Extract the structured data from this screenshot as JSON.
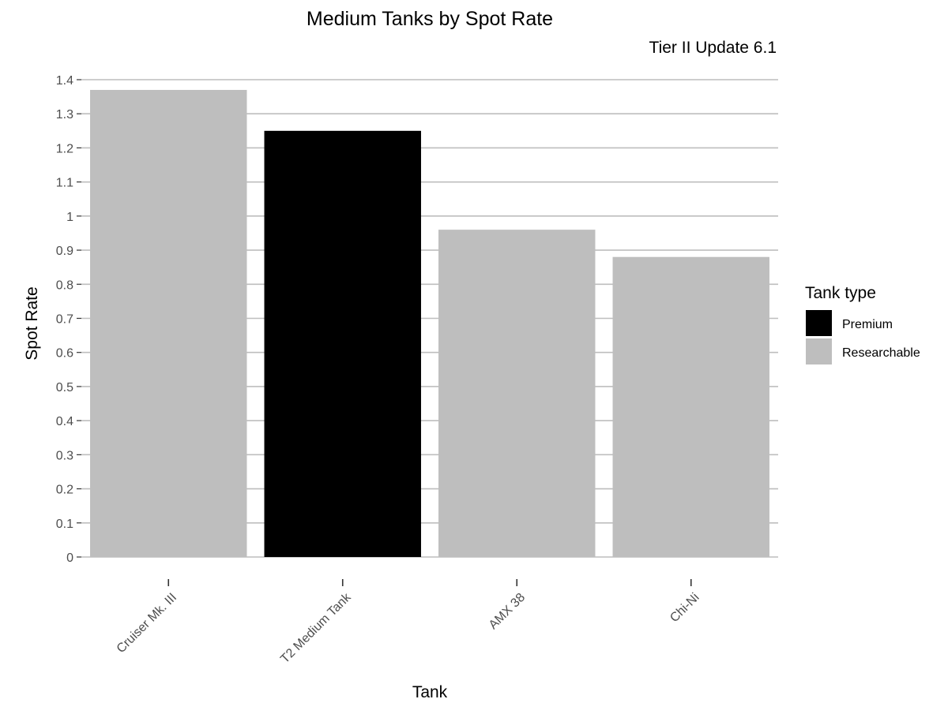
{
  "chart_data": {
    "type": "bar",
    "title": "Medium Tanks by Spot Rate",
    "subtitle": "Tier II Update 6.1",
    "xlabel": "Tank",
    "ylabel": "Spot Rate",
    "categories": [
      "Cruiser Mk. III",
      "T2 Medium Tank",
      "AMX 38",
      "Chi-Ni"
    ],
    "values": [
      1.37,
      1.25,
      0.96,
      0.88
    ],
    "tank_type": [
      "Researchable",
      "Premium",
      "Researchable",
      "Researchable"
    ],
    "ylim": [
      0,
      1.4
    ],
    "yticks": [
      0,
      0.1,
      0.2,
      0.3,
      0.4,
      0.5,
      0.6,
      0.7,
      0.8,
      0.9,
      1,
      1.1,
      1.2,
      1.3,
      1.4
    ],
    "ytick_labels": [
      "0",
      "0.1",
      "0.2",
      "0.3",
      "0.4",
      "0.5",
      "0.6",
      "0.7",
      "0.8",
      "0.9",
      "1",
      "1.1",
      "1.2",
      "1.3",
      "1.4"
    ],
    "grid": true,
    "legend": {
      "title": "Tank type",
      "position": "right",
      "entries": [
        {
          "label": "Premium",
          "color": "#000000"
        },
        {
          "label": "Researchable",
          "color": "#bebebe"
        }
      ]
    },
    "colors": {
      "Premium": "#000000",
      "Researchable": "#bebebe",
      "grid": "#bebebe"
    }
  }
}
